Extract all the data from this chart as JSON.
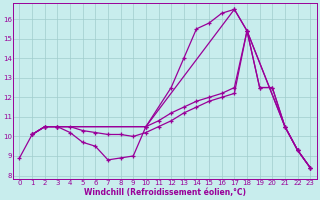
{
  "xlabel": "Windchill (Refroidissement éolien,°C)",
  "xlim": [
    -0.5,
    23.5
  ],
  "ylim": [
    7.8,
    16.8
  ],
  "yticks": [
    8,
    9,
    10,
    11,
    12,
    13,
    14,
    15,
    16
  ],
  "xticks": [
    0,
    1,
    2,
    3,
    4,
    5,
    6,
    7,
    8,
    9,
    10,
    11,
    12,
    13,
    14,
    15,
    16,
    17,
    18,
    19,
    20,
    21,
    22,
    23
  ],
  "bg_color": "#c8eded",
  "grid_color": "#a0cccc",
  "line_color": "#990099",
  "curve_upper_x": [
    1,
    2,
    3,
    10,
    12,
    13,
    14,
    15,
    16,
    17,
    18,
    21,
    22,
    23
  ],
  "curve_upper_y": [
    10.1,
    10.5,
    10.5,
    10.5,
    12.5,
    14.0,
    15.5,
    15.8,
    16.3,
    16.5,
    15.4,
    10.5,
    9.3,
    8.4
  ],
  "curve_dip_x": [
    0,
    1,
    2,
    3,
    4,
    5,
    6,
    7,
    8,
    9,
    10,
    17,
    18,
    21,
    22,
    23
  ],
  "curve_dip_y": [
    8.9,
    10.1,
    10.5,
    10.5,
    10.2,
    9.7,
    9.5,
    8.8,
    8.9,
    9.0,
    10.5,
    16.5,
    15.4,
    10.5,
    9.3,
    8.4
  ],
  "curve_flat_x": [
    1,
    2,
    3,
    4,
    5,
    6,
    7,
    8,
    9,
    10,
    11,
    12,
    13,
    14,
    15,
    16,
    17,
    18,
    19,
    20,
    21,
    22,
    23
  ],
  "curve_flat_y": [
    10.1,
    10.5,
    10.5,
    10.5,
    10.3,
    10.2,
    10.1,
    10.1,
    10.0,
    10.2,
    10.5,
    10.8,
    11.2,
    11.5,
    11.8,
    12.0,
    12.2,
    15.4,
    12.5,
    12.5,
    10.5,
    9.3,
    8.4
  ],
  "curve_slow_x": [
    1,
    2,
    3,
    10,
    11,
    12,
    13,
    14,
    15,
    16,
    17,
    18,
    19,
    20,
    21,
    22,
    23
  ],
  "curve_slow_y": [
    10.1,
    10.5,
    10.5,
    10.5,
    10.8,
    11.2,
    11.5,
    11.8,
    12.0,
    12.2,
    12.5,
    15.4,
    12.5,
    12.5,
    10.5,
    9.3,
    8.4
  ]
}
